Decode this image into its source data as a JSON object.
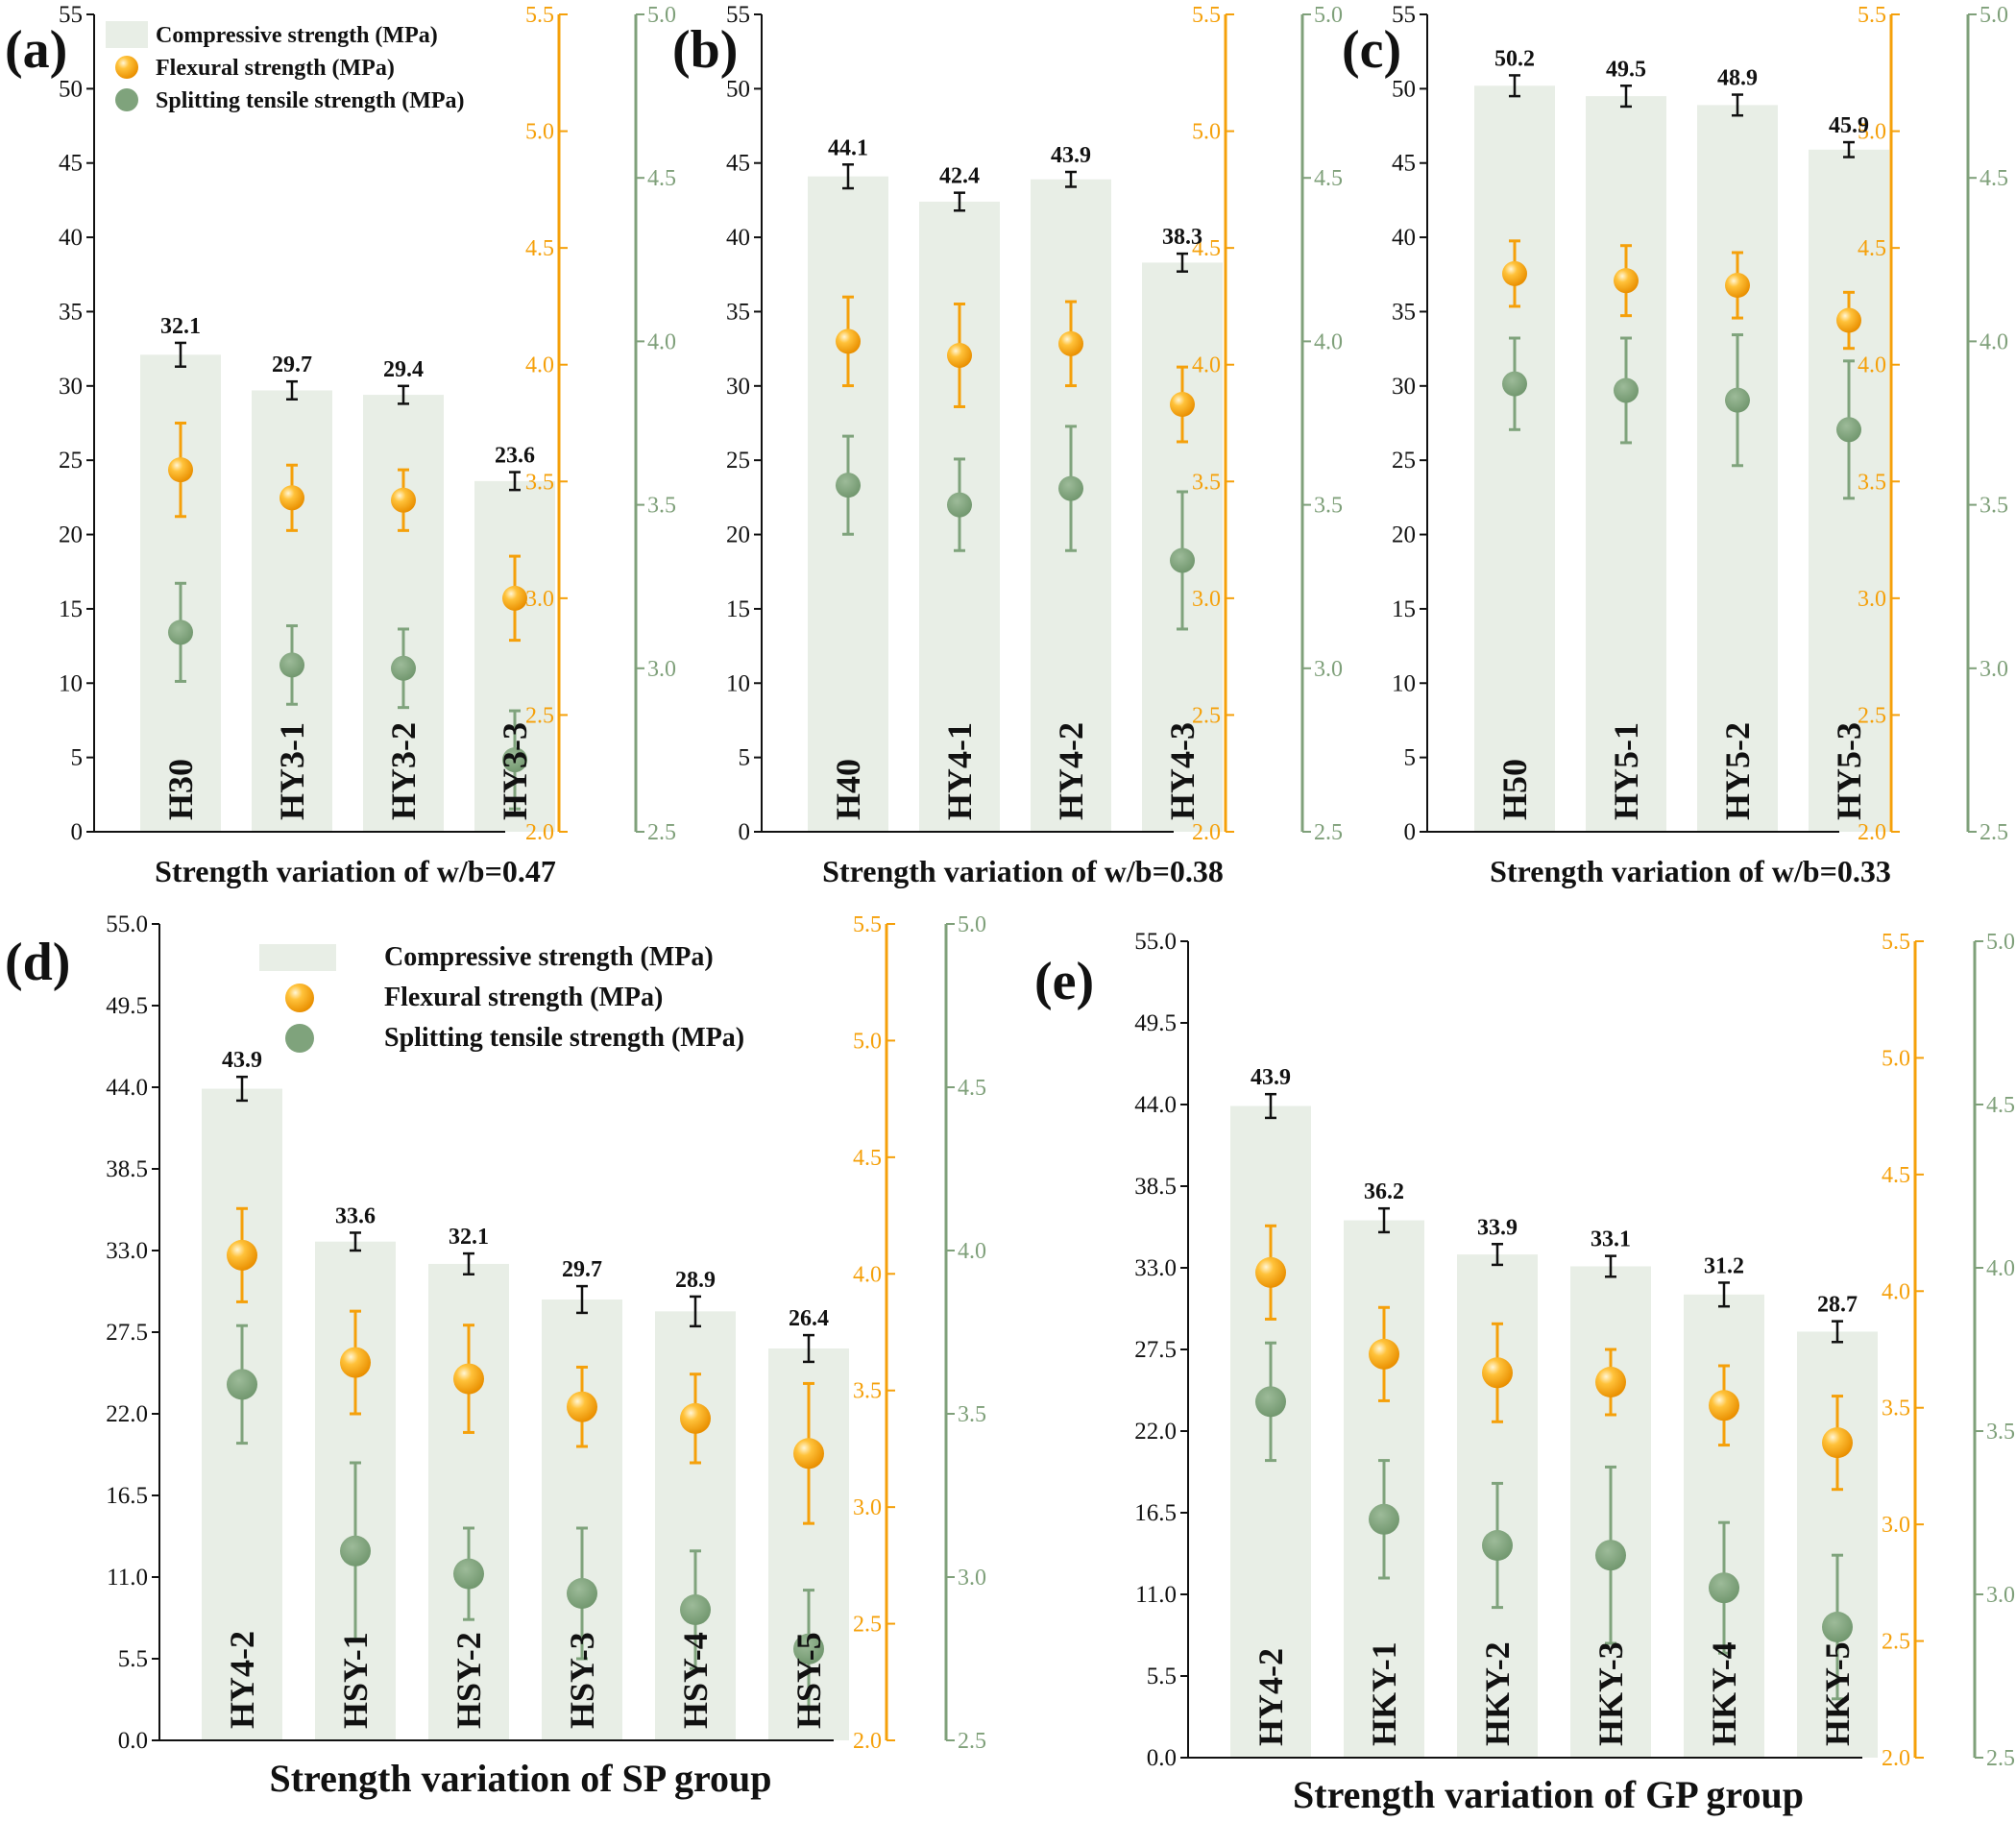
{
  "colors": {
    "bar": "#e8eee6",
    "flexural": "#f5a00a",
    "splitting": "#7fa37c",
    "axis_left": "#111111",
    "axis_orange": "#f5a00a",
    "axis_green": "#7fa07a"
  },
  "legend": {
    "compressive": "Compressive strength (MPa)",
    "flexural": "Flexural strength (MPa)",
    "splitting": "Splitting tensile strength (MPa)"
  },
  "chart_data": [
    {
      "id": "a",
      "type": "bar",
      "panel_label": "(a)",
      "xlabel": "Strength variation of  w/b=0.47",
      "categories": [
        "H30",
        "HY3-1",
        "HY3-2",
        "HY3-3"
      ],
      "y_left": {
        "range": [
          0,
          55
        ],
        "ticks": [
          0,
          5,
          10,
          15,
          20,
          25,
          30,
          35,
          40,
          45,
          50,
          55
        ],
        "tick_labels": [
          "0",
          "5",
          "10",
          "15",
          "20",
          "25",
          "30",
          "35",
          "40",
          "45",
          "50",
          "55"
        ]
      },
      "y_flexural": {
        "range": [
          2.0,
          5.5
        ],
        "ticks": [
          2.0,
          2.5,
          3.0,
          3.5,
          4.0,
          4.5,
          5.0,
          5.5
        ],
        "tick_labels": [
          "2.0",
          "2.5",
          "3.0",
          "3.5",
          "4.0",
          "4.5",
          "5.0",
          "5.5"
        ]
      },
      "y_splitting": {
        "range": [
          2.5,
          5.0
        ],
        "ticks": [
          2.5,
          3.0,
          3.5,
          4.0,
          4.5,
          5.0
        ],
        "tick_labels": [
          "2.5",
          "3.0",
          "3.5",
          "4.0",
          "4.5",
          "5.0"
        ]
      },
      "series": [
        {
          "name": "Compressive strength (MPa)",
          "values": [
            32.1,
            29.7,
            29.4,
            23.6
          ],
          "labels": [
            "32.1",
            "29.7",
            "29.4",
            "23.6"
          ],
          "errors": [
            0.8,
            0.6,
            0.6,
            0.6
          ]
        },
        {
          "name": "Flexural strength (MPa)",
          "values": [
            3.55,
            3.43,
            3.42,
            3.0
          ],
          "errors": [
            0.2,
            0.14,
            0.13,
            0.18
          ]
        },
        {
          "name": "Splitting tensile strength (MPa)",
          "values": [
            3.11,
            3.01,
            3.0,
            2.72
          ],
          "errors": [
            0.15,
            0.12,
            0.12,
            0.15
          ]
        }
      ]
    },
    {
      "id": "b",
      "type": "bar",
      "panel_label": "(b)",
      "xlabel": "Strength variation of  w/b=0.38",
      "categories": [
        "H40",
        "HY4-1",
        "HY4-2",
        "HY4-3"
      ],
      "y_left": {
        "range": [
          0,
          55
        ],
        "ticks": [
          0,
          5,
          10,
          15,
          20,
          25,
          30,
          35,
          40,
          45,
          50,
          55
        ],
        "tick_labels": [
          "0",
          "5",
          "10",
          "15",
          "20",
          "25",
          "30",
          "35",
          "40",
          "45",
          "50",
          "55"
        ]
      },
      "y_flexural": {
        "range": [
          2.0,
          5.5
        ],
        "ticks": [
          2.0,
          2.5,
          3.0,
          3.5,
          4.0,
          4.5,
          5.0,
          5.5
        ],
        "tick_labels": [
          "2.0",
          "2.5",
          "3.0",
          "3.5",
          "4.0",
          "4.5",
          "5.0",
          "5.5"
        ]
      },
      "y_splitting": {
        "range": [
          2.5,
          5.0
        ],
        "ticks": [
          2.5,
          3.0,
          3.5,
          4.0,
          4.5,
          5.0
        ],
        "tick_labels": [
          "2.5",
          "3.0",
          "3.5",
          "4.0",
          "4.5",
          "5.0"
        ]
      },
      "series": [
        {
          "name": "Compressive strength (MPa)",
          "values": [
            44.1,
            42.4,
            43.9,
            38.3
          ],
          "labels": [
            "44.1",
            "42.4",
            "43.9",
            "38.3"
          ],
          "errors": [
            0.8,
            0.6,
            0.5,
            0.6
          ]
        },
        {
          "name": "Flexural strength (MPa)",
          "values": [
            4.1,
            4.04,
            4.09,
            3.83
          ],
          "errors": [
            0.19,
            0.22,
            0.18,
            0.16
          ]
        },
        {
          "name": "Splitting tensile strength (MPa)",
          "values": [
            3.56,
            3.5,
            3.55,
            3.33
          ],
          "errors": [
            0.15,
            0.14,
            0.19,
            0.21
          ]
        }
      ]
    },
    {
      "id": "c",
      "type": "bar",
      "panel_label": "(c)",
      "xlabel": "Strength variation of  w/b=0.33",
      "categories": [
        "H50",
        "HY5-1",
        "HY5-2",
        "HY5-3"
      ],
      "y_left": {
        "range": [
          0,
          55
        ],
        "ticks": [
          0,
          5,
          10,
          15,
          20,
          25,
          30,
          35,
          40,
          45,
          50,
          55
        ],
        "tick_labels": [
          "0",
          "5",
          "10",
          "15",
          "20",
          "25",
          "30",
          "35",
          "40",
          "45",
          "50",
          "55"
        ]
      },
      "y_flexural": {
        "range": [
          2.0,
          5.5
        ],
        "ticks": [
          2.0,
          2.5,
          3.0,
          3.5,
          4.0,
          4.5,
          5.0,
          5.5
        ],
        "tick_labels": [
          "2.0",
          "2.5",
          "3.0",
          "3.5",
          "4.0",
          "4.5",
          "5.0",
          "5.5"
        ]
      },
      "y_splitting": {
        "range": [
          2.5,
          5.0
        ],
        "ticks": [
          2.5,
          3.0,
          3.5,
          4.0,
          4.5,
          5.0
        ],
        "tick_labels": [
          "2.5",
          "3.0",
          "3.5",
          "4.0",
          "4.5",
          "5.0"
        ]
      },
      "series": [
        {
          "name": "Compressive strength (MPa)",
          "values": [
            50.2,
            49.5,
            48.9,
            45.9
          ],
          "labels": [
            "50.2",
            "49.5",
            "48.9",
            "45.9"
          ],
          "errors": [
            0.7,
            0.7,
            0.7,
            0.5
          ]
        },
        {
          "name": "Flexural strength (MPa)",
          "values": [
            4.39,
            4.36,
            4.34,
            4.19
          ],
          "errors": [
            0.14,
            0.15,
            0.14,
            0.12
          ]
        },
        {
          "name": "Splitting tensile strength (MPa)",
          "values": [
            3.87,
            3.85,
            3.82,
            3.73
          ],
          "errors": [
            0.14,
            0.16,
            0.2,
            0.21
          ]
        }
      ]
    },
    {
      "id": "d",
      "type": "bar",
      "panel_label": "(d)",
      "xlabel": "Strength variation of  SP group",
      "categories": [
        "HY4-2",
        "HSY-1",
        "HSY-2",
        "HSY-3",
        "HSY-4",
        "HSY-5"
      ],
      "y_left": {
        "range": [
          0,
          55
        ],
        "ticks": [
          0,
          5.5,
          11,
          16.5,
          22,
          27.5,
          33,
          38.5,
          44,
          49.5,
          55
        ],
        "tick_labels": [
          "0.0",
          "5.5",
          "11.0",
          "16.5",
          "22.0",
          "27.5",
          "33.0",
          "38.5",
          "44.0",
          "49.5",
          "55.0"
        ]
      },
      "y_flexural": {
        "range": [
          2.0,
          5.5
        ],
        "ticks": [
          2.0,
          2.5,
          3.0,
          3.5,
          4.0,
          4.5,
          5.0,
          5.5
        ],
        "tick_labels": [
          "2.0",
          "2.5",
          "3.0",
          "3.5",
          "4.0",
          "4.5",
          "5.0",
          "5.5"
        ]
      },
      "y_splitting": {
        "range": [
          2.5,
          5.0
        ],
        "ticks": [
          2.5,
          3.0,
          3.5,
          4.0,
          4.5,
          5.0
        ],
        "tick_labels": [
          "2.5",
          "3.0",
          "3.5",
          "4.0",
          "4.5",
          "5.0"
        ]
      },
      "series": [
        {
          "name": "Compressive strength (MPa)",
          "values": [
            43.9,
            33.6,
            32.1,
            29.7,
            28.9,
            26.4
          ],
          "labels": [
            "43.9",
            "33.6",
            "32.1",
            "29.7",
            "28.9",
            "26.4"
          ],
          "errors": [
            0.8,
            0.6,
            0.7,
            0.9,
            1.0,
            0.9
          ]
        },
        {
          "name": "Flexural strength (MPa)",
          "values": [
            4.08,
            3.62,
            3.55,
            3.43,
            3.38,
            3.23
          ],
          "errors": [
            0.2,
            0.22,
            0.23,
            0.17,
            0.19,
            0.3
          ]
        },
        {
          "name": "Splitting tensile strength (MPa)",
          "values": [
            3.59,
            3.08,
            3.01,
            2.95,
            2.9,
            2.78
          ],
          "errors": [
            0.18,
            0.27,
            0.14,
            0.2,
            0.18,
            0.18
          ]
        }
      ]
    },
    {
      "id": "e",
      "type": "bar",
      "panel_label": "(e)",
      "xlabel": "Strength variation of  GP group",
      "categories": [
        "HY4-2",
        "HKY-1",
        "HKY-2",
        "HKY-3",
        "HKY-4",
        "HKY-5"
      ],
      "y_left": {
        "range": [
          0,
          55
        ],
        "ticks": [
          0,
          5.5,
          11,
          16.5,
          22,
          27.5,
          33,
          38.5,
          44,
          49.5,
          55
        ],
        "tick_labels": [
          "0.0",
          "5.5",
          "11.0",
          "16.5",
          "22.0",
          "27.5",
          "33.0",
          "38.5",
          "44.0",
          "49.5",
          "55.0"
        ]
      },
      "y_flexural": {
        "range": [
          2.0,
          5.5
        ],
        "ticks": [
          2.0,
          2.5,
          3.0,
          3.5,
          4.0,
          4.5,
          5.0,
          5.5
        ],
        "tick_labels": [
          "2.0",
          "2.5",
          "3.0",
          "3.5",
          "4.0",
          "4.5",
          "5.0",
          "5.5"
        ]
      },
      "y_splitting": {
        "range": [
          2.5,
          5.0
        ],
        "ticks": [
          2.5,
          3.0,
          3.5,
          4.0,
          4.5,
          5.0
        ],
        "tick_labels": [
          "2.5",
          "3.0",
          "3.5",
          "4.0",
          "4.5",
          "5.0"
        ]
      },
      "series": [
        {
          "name": "Compressive strength (MPa)",
          "values": [
            43.9,
            36.2,
            33.9,
            33.1,
            31.2,
            28.7
          ],
          "labels": [
            "43.9",
            "36.2",
            "33.9",
            "33.1",
            "31.2",
            "28.7"
          ],
          "errors": [
            0.8,
            0.8,
            0.7,
            0.7,
            0.8,
            0.7
          ]
        },
        {
          "name": "Flexural strength (MPa)",
          "values": [
            4.08,
            3.73,
            3.65,
            3.61,
            3.51,
            3.35
          ],
          "errors": [
            0.2,
            0.2,
            0.21,
            0.14,
            0.17,
            0.2
          ]
        },
        {
          "name": "Splitting tensile strength (MPa)",
          "values": [
            3.59,
            3.23,
            3.15,
            3.12,
            3.02,
            2.9
          ],
          "errors": [
            0.18,
            0.18,
            0.19,
            0.27,
            0.2,
            0.22
          ]
        }
      ]
    }
  ]
}
